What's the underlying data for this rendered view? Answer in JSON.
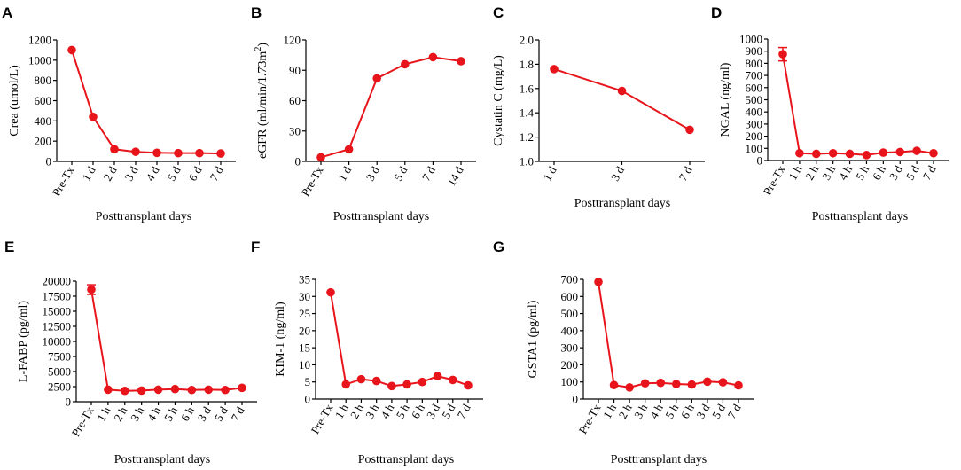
{
  "colors": {
    "series": "#e8141b",
    "axis": "#000000"
  },
  "xlabel": "Posttransplant days",
  "chart_data": [
    {
      "panel": "A",
      "type": "line",
      "ylabel": "Crea (umol/L)",
      "categories": [
        "Pre-Tx",
        "1 d",
        "2 d",
        "3 d",
        "4 d",
        "5 d",
        "6 d",
        "7 d"
      ],
      "values": [
        1100,
        440,
        120,
        95,
        85,
        82,
        82,
        78
      ],
      "errors": [
        0,
        0,
        0,
        0,
        0,
        0,
        0,
        0
      ],
      "ylim": [
        0,
        1200
      ],
      "yticks": [
        0,
        200,
        400,
        600,
        800,
        1000,
        1200
      ],
      "xlabel": "Posttransplant days"
    },
    {
      "panel": "B",
      "type": "line",
      "ylabel": "eGFR (ml/min/1.73m",
      "ylabel_sup": "2",
      "ylabel_tail": ")",
      "categories": [
        "Pre-Tx",
        "1 d",
        "3 d",
        "5 d",
        "7 d",
        "14 d"
      ],
      "values": [
        4,
        12,
        82,
        96,
        103,
        99
      ],
      "errors": [
        0,
        0,
        0,
        0,
        0,
        0
      ],
      "ylim": [
        0,
        120
      ],
      "yticks": [
        0,
        30,
        60,
        90,
        120
      ],
      "xlabel": "Posttransplant days"
    },
    {
      "panel": "C",
      "type": "line",
      "ylabel": "Cystatin C (mg/L)",
      "categories": [
        "1 d",
        "3 d",
        "7 d"
      ],
      "values": [
        1.76,
        1.58,
        1.26
      ],
      "errors": [
        0,
        0,
        0
      ],
      "ylim": [
        1.0,
        2.0
      ],
      "yticks": [
        "1.0",
        "1.2",
        "1.4",
        "1.6",
        "1.8",
        "2.0"
      ],
      "xlabel": "Posttransplant days"
    },
    {
      "panel": "D",
      "type": "line",
      "ylabel": "NGAL (ng/ml)",
      "categories": [
        "Pre-Tx",
        "1 h",
        "2 h",
        "3 h",
        "4 h",
        "5 h",
        "6 h",
        "3 d",
        "5 d",
        "7 d"
      ],
      "values": [
        875,
        60,
        55,
        60,
        55,
        45,
        65,
        70,
        80,
        60
      ],
      "errors": [
        55,
        0,
        0,
        0,
        0,
        0,
        0,
        0,
        0,
        0
      ],
      "ylim": [
        0,
        1000
      ],
      "yticks": [
        0,
        100,
        200,
        300,
        400,
        500,
        600,
        700,
        800,
        900,
        1000
      ],
      "xlabel": "Posttransplant days"
    },
    {
      "panel": "E",
      "type": "line",
      "ylabel": "L-FABP (pg/ml)",
      "categories": [
        "Pre-Tx",
        "1 h",
        "2 h",
        "3 h",
        "4 h",
        "5 h",
        "6 h",
        "3 d",
        "5 d",
        "7 d"
      ],
      "values": [
        18600,
        2000,
        1800,
        1850,
        2000,
        2100,
        1950,
        2000,
        1950,
        2300
      ],
      "errors": [
        800,
        0,
        0,
        0,
        0,
        0,
        0,
        0,
        0,
        0
      ],
      "ylim": [
        0,
        20000
      ],
      "yticks": [
        0,
        2500,
        5000,
        7500,
        10000,
        12500,
        15000,
        17500,
        20000
      ],
      "xlabel": "Posttransplant days"
    },
    {
      "panel": "F",
      "type": "line",
      "ylabel": "KIM-1 (ng/ml)",
      "categories": [
        "Pre-Tx",
        "1 h",
        "2 h",
        "3 h",
        "4 h",
        "5 h",
        "6 h",
        "3 d",
        "5 d",
        "7 d"
      ],
      "values": [
        31.2,
        4.3,
        5.8,
        5.3,
        3.8,
        4.3,
        5.0,
        6.7,
        5.6,
        4.0
      ],
      "errors": [
        0,
        0,
        0,
        0,
        0,
        0,
        0,
        0,
        0,
        0
      ],
      "ylim": [
        0,
        35
      ],
      "yticks": [
        0,
        5,
        10,
        15,
        20,
        25,
        30,
        35
      ],
      "xlabel": "Posttransplant days"
    },
    {
      "panel": "G",
      "type": "line",
      "ylabel": "GSTA1 (pg/ml)",
      "categories": [
        "Pre-Tx",
        "1 h",
        "2 h",
        "3 h",
        "4 h",
        "5 h",
        "6 h",
        "3 d",
        "5 d",
        "7 d"
      ],
      "values": [
        685,
        82,
        68,
        92,
        95,
        88,
        85,
        102,
        98,
        80
      ],
      "errors": [
        0,
        0,
        0,
        0,
        0,
        0,
        0,
        0,
        0,
        0
      ],
      "ylim": [
        0,
        700
      ],
      "yticks": [
        0,
        100,
        200,
        300,
        400,
        500,
        600,
        700
      ],
      "xlabel": "Posttransplant days"
    }
  ]
}
